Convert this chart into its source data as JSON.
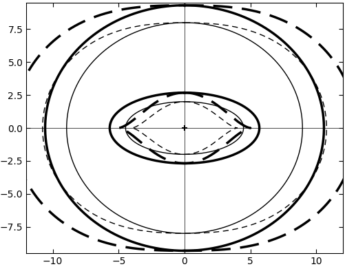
{
  "G0M": 6,
  "a": 5,
  "G0M_imp": 5.0,
  "a_imp": 4.0,
  "xlim": [
    -12,
    12
  ],
  "ylim": [
    -9.5,
    9.5
  ],
  "xticks": [
    -10,
    -5,
    0,
    5,
    10
  ],
  "yticks": [
    -7.5,
    -5,
    -2.5,
    0,
    2.5,
    5,
    7.5
  ],
  "figsize": [
    5.02,
    3.91
  ],
  "dpi": 100,
  "thick_lw": 2.5,
  "thin_lw": 1.0,
  "dash_thick": [
    8,
    4
  ],
  "dash_thin": [
    6,
    4
  ]
}
